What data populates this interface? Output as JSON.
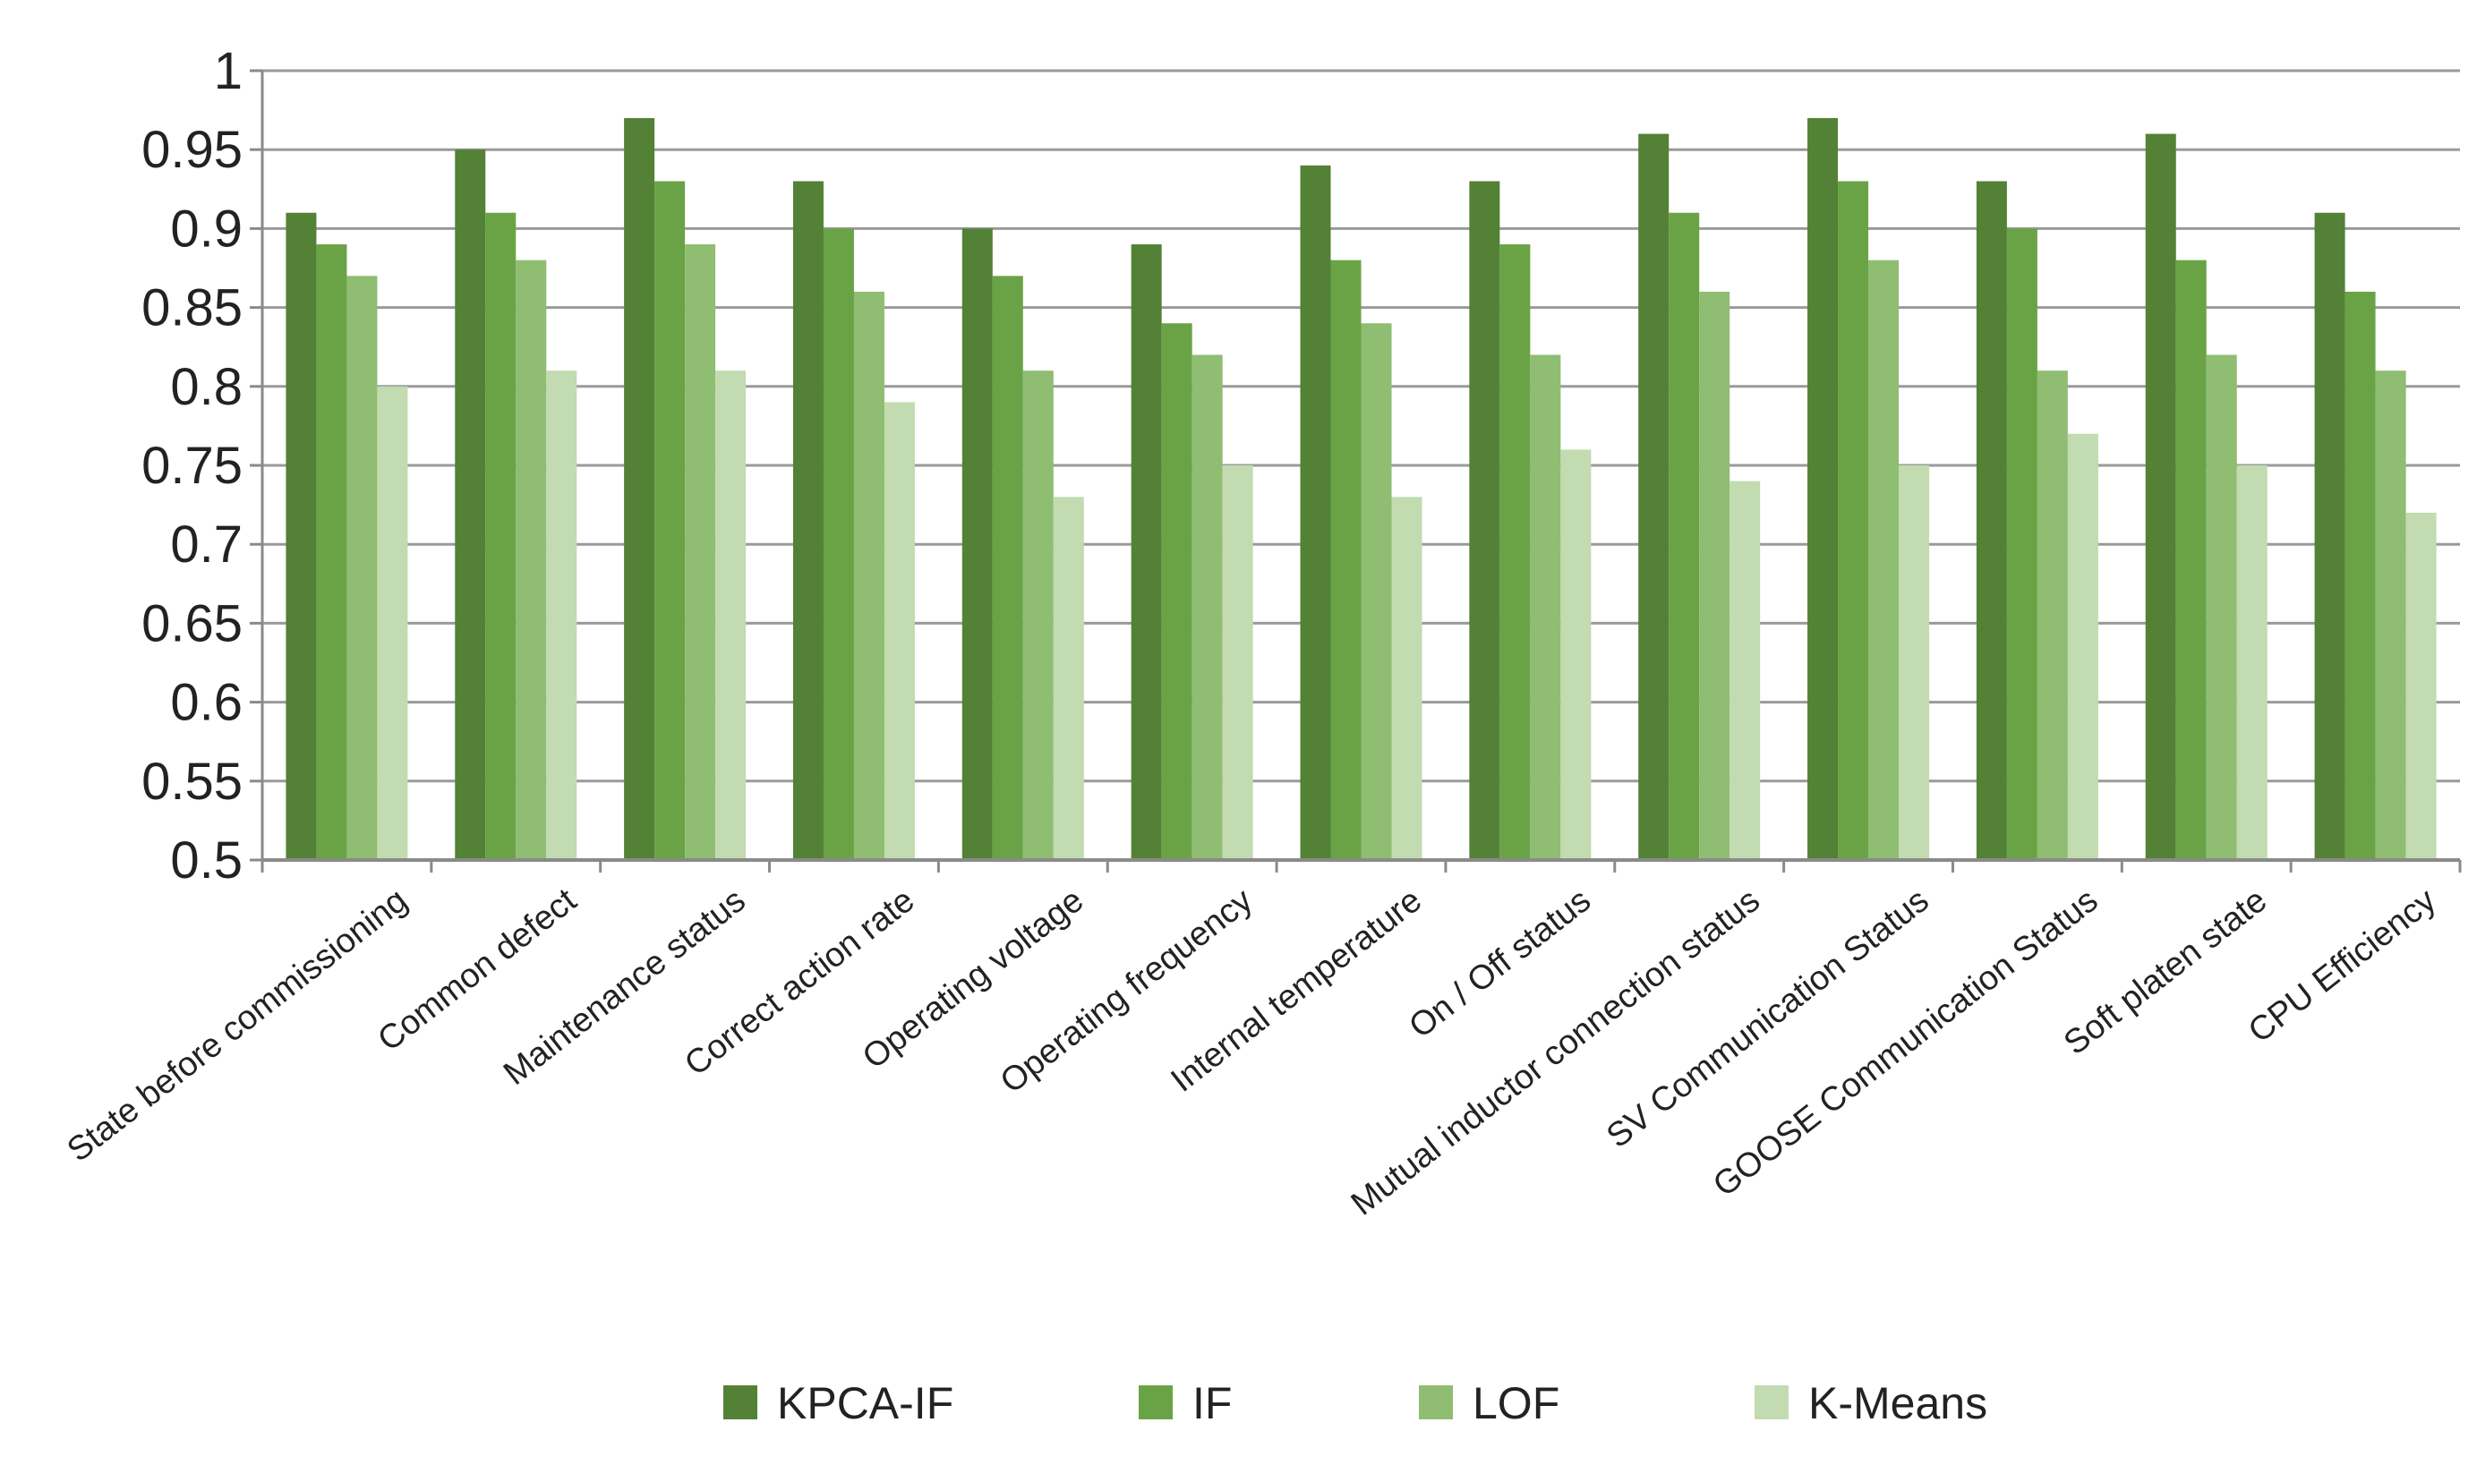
{
  "chart_data": {
    "type": "bar",
    "title": "",
    "xlabel": "",
    "ylabel": "",
    "ylim": [
      0.5,
      1
    ],
    "yticks": [
      0.5,
      0.55,
      0.6,
      0.65,
      0.7,
      0.75,
      0.8,
      0.85,
      0.9,
      0.95,
      1
    ],
    "ytick_labels": [
      "0.5",
      "0.55",
      "0.6",
      "0.65",
      "0.7",
      "0.75",
      "0.8",
      "0.85",
      "0.9",
      "0.95",
      "1"
    ],
    "grid": true,
    "legend_position": "bottom",
    "categories": [
      "State before commissioning",
      "Common defect",
      "Maintenance status",
      "Correct action rate",
      "Operating voltage",
      "Operating frequency",
      "Internal temperature",
      "On / Off status",
      "Mutual inductor connection status",
      "SV Communication Status",
      "GOOSE Communication Status",
      "Soft platen state",
      "CPU Efficiency"
    ],
    "series": [
      {
        "name": "KPCA-IF",
        "color": "#538135",
        "values": [
          0.91,
          0.95,
          0.97,
          0.93,
          0.9,
          0.89,
          0.94,
          0.93,
          0.96,
          0.97,
          0.93,
          0.96,
          0.91
        ]
      },
      {
        "name": "IF",
        "color": "#6aa346",
        "values": [
          0.89,
          0.91,
          0.93,
          0.9,
          0.87,
          0.84,
          0.88,
          0.89,
          0.91,
          0.93,
          0.9,
          0.88,
          0.86
        ]
      },
      {
        "name": "LOF",
        "color": "#8fbd72",
        "values": [
          0.87,
          0.88,
          0.89,
          0.86,
          0.81,
          0.82,
          0.84,
          0.82,
          0.86,
          0.88,
          0.81,
          0.82,
          0.81
        ]
      },
      {
        "name": "K-Means",
        "color": "#c2dbb0",
        "values": [
          0.8,
          0.81,
          0.81,
          0.79,
          0.73,
          0.75,
          0.73,
          0.76,
          0.74,
          0.75,
          0.77,
          0.75,
          0.72
        ]
      }
    ]
  }
}
